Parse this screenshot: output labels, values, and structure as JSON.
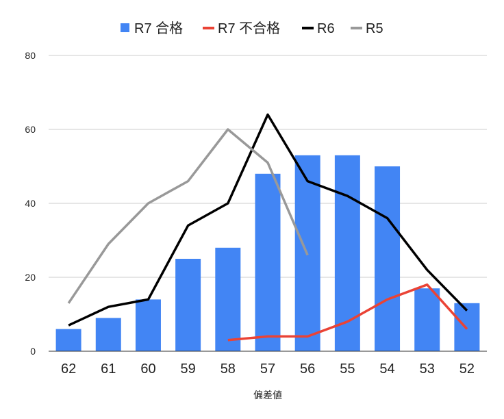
{
  "chart_data": {
    "type": "bar",
    "title": "",
    "xlabel": "偏差値",
    "ylabel": "",
    "ylim": [
      0,
      80
    ],
    "yticks": [
      0,
      20,
      40,
      60,
      80
    ],
    "grid": true,
    "legend_position": "top",
    "categories": [
      "62",
      "61",
      "60",
      "59",
      "58",
      "57",
      "56",
      "55",
      "54",
      "53",
      "52"
    ],
    "series": [
      {
        "name": "R7 合格",
        "kind": "bar",
        "color": "#4285f4",
        "values": [
          6,
          9,
          14,
          25,
          28,
          48,
          53,
          53,
          50,
          17,
          13
        ]
      },
      {
        "name": "R7 不合格",
        "kind": "line",
        "color": "#ea4335",
        "values": [
          null,
          null,
          null,
          null,
          3,
          4,
          4,
          8,
          14,
          18,
          6
        ]
      },
      {
        "name": "R6",
        "kind": "line",
        "color": "#000000",
        "values": [
          7,
          12,
          14,
          34,
          40,
          64,
          46,
          42,
          36,
          22,
          11
        ]
      },
      {
        "name": "R5",
        "kind": "line",
        "color": "#999999",
        "values": [
          13,
          29,
          40,
          46,
          60,
          51,
          26,
          null,
          null,
          null,
          null
        ]
      }
    ]
  }
}
